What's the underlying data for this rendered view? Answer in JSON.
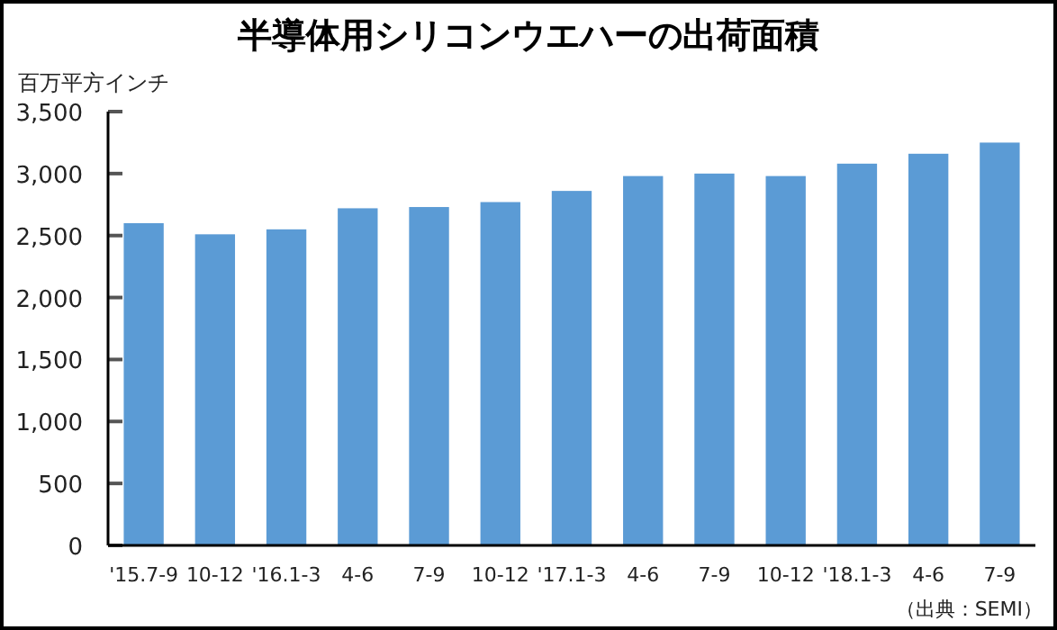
{
  "chart_data": {
    "type": "bar",
    "title": "半導体用シリコンウエハーの出荷面積",
    "ylabel": "百万平方インチ",
    "categories": [
      "'15.7-9",
      "10-12",
      "'16.1-3",
      "4-6",
      "7-9",
      "10-12",
      "'17.1-3",
      "4-6",
      "7-9",
      "10-12",
      "'18.1-3",
      "4-6",
      "7-9"
    ],
    "values": [
      2600,
      2510,
      2550,
      2720,
      2730,
      2770,
      2860,
      2980,
      3000,
      2980,
      3080,
      3160,
      3250
    ],
    "color": "#5b9bd5",
    "ylim": [
      0,
      3500
    ],
    "yticks": [
      0,
      500,
      {
        "value": 1000,
        "label": "1,000"
      },
      {
        "value": 1500,
        "label": "1,500"
      },
      {
        "value": 2000,
        "label": "2,000"
      },
      {
        "value": 2500,
        "label": "2,500"
      },
      {
        "value": 3000,
        "label": "3,000"
      },
      {
        "value": 3500,
        "label": "3,500"
      }
    ],
    "grid": false,
    "annotations": [
      "（出典：SEMI）"
    ]
  }
}
